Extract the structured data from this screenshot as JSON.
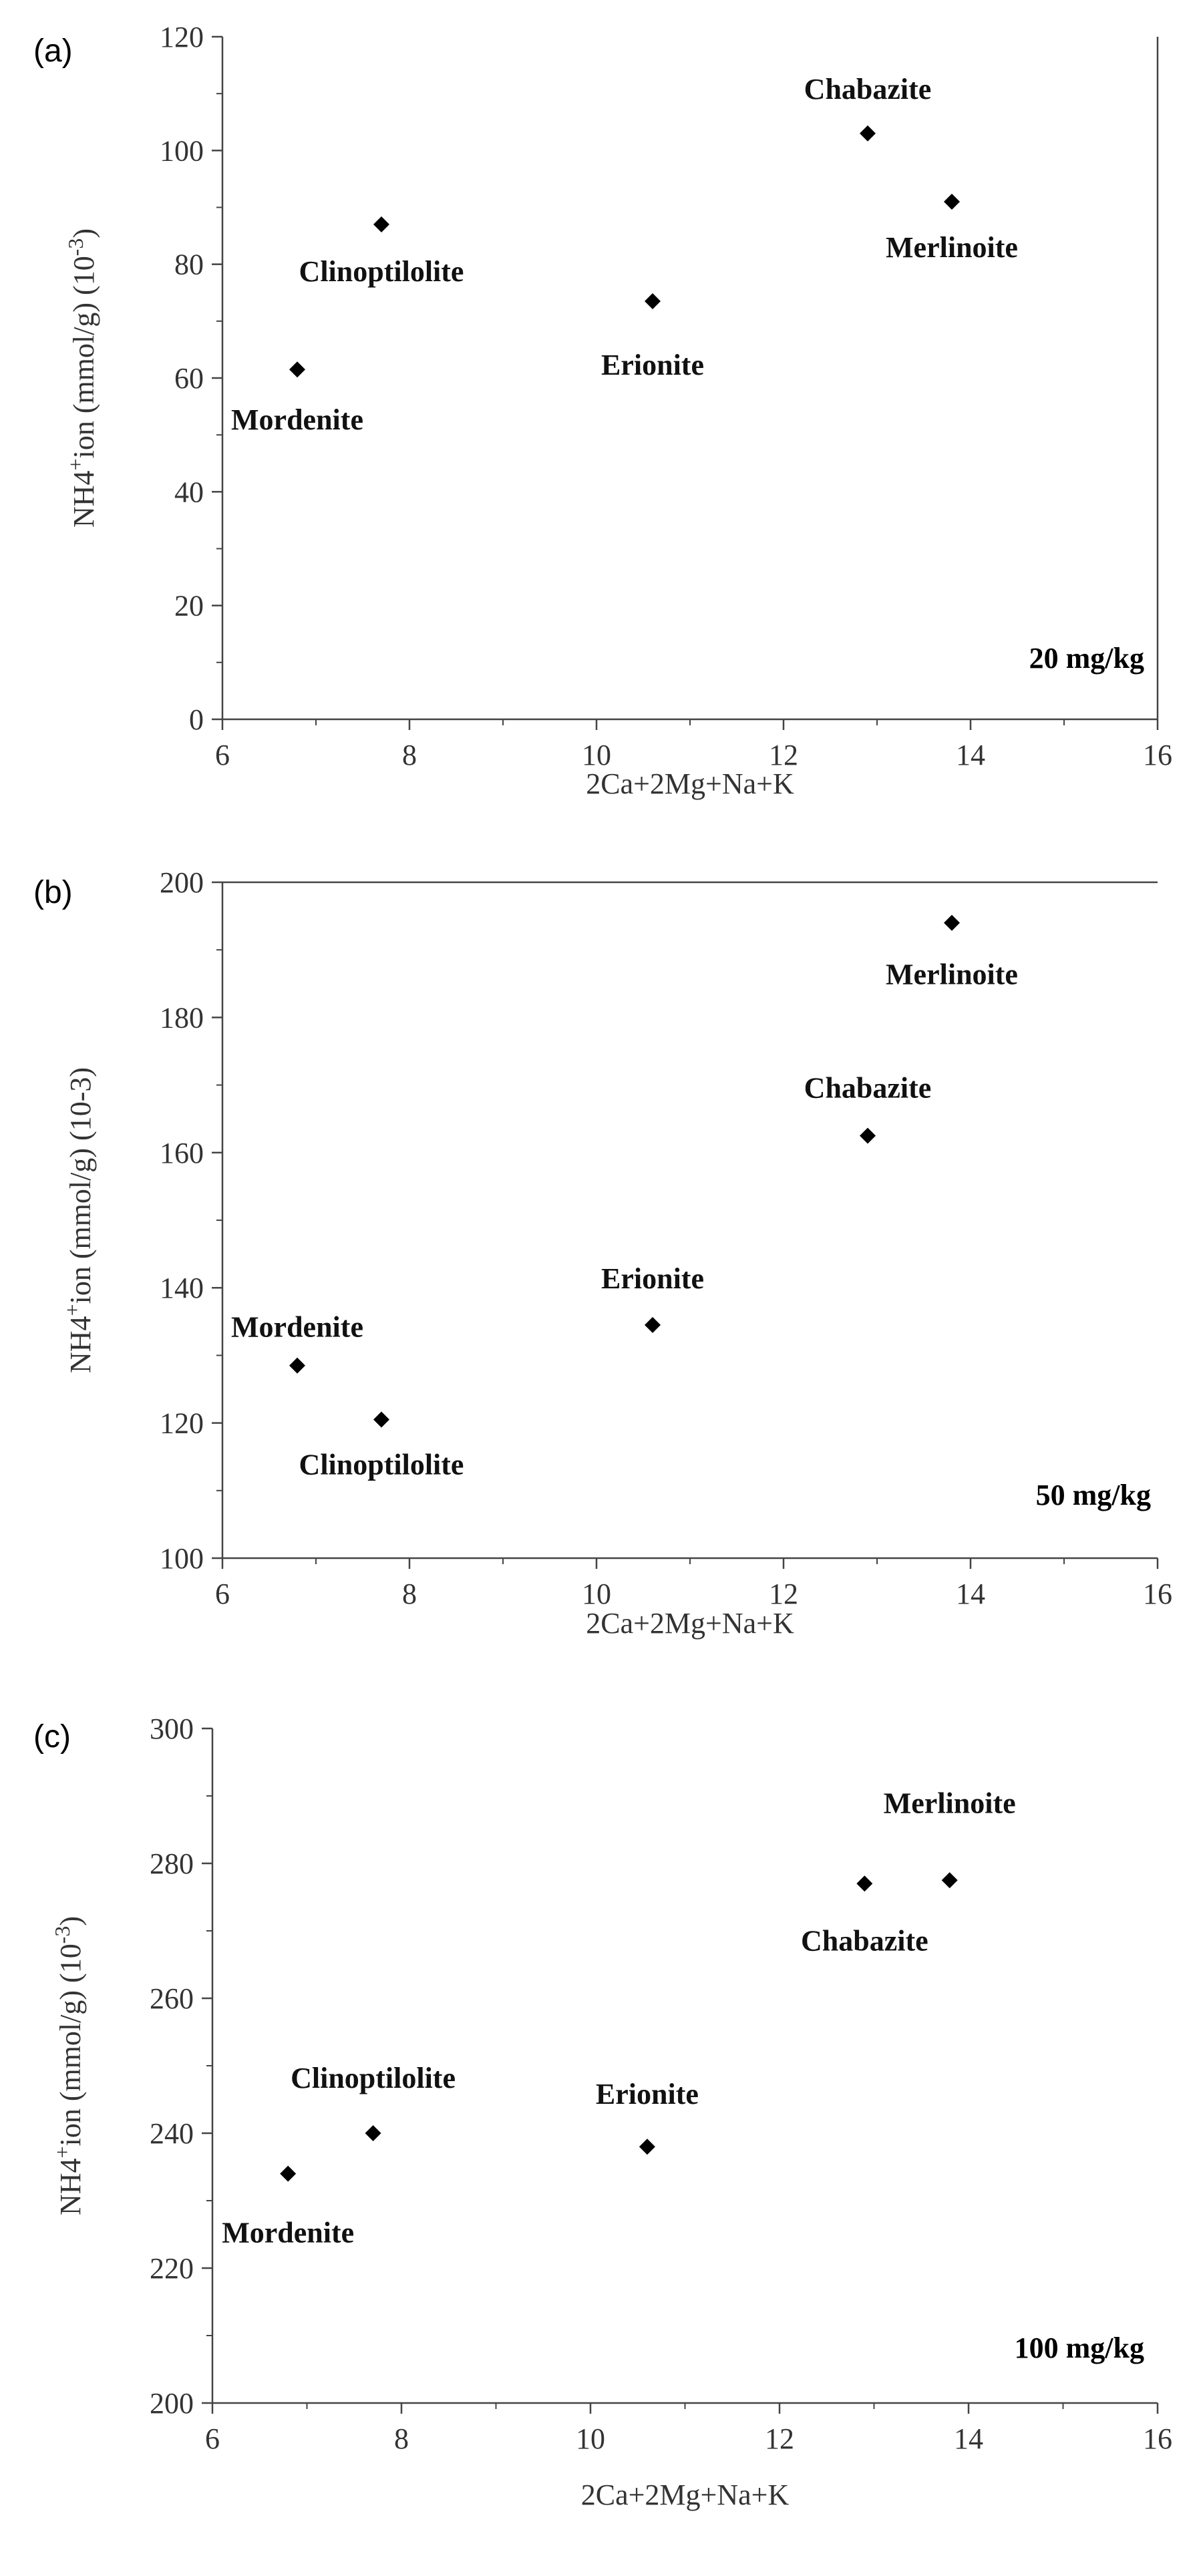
{
  "chart_data": [
    {
      "panel": "(a)",
      "type": "scatter",
      "xlabel": "2Ca+2Mg+Na+K",
      "ylabel": "NH4+ion (mmol/g) (10-3)",
      "ylabel_parts": {
        "base": "NH4",
        "sup_ion": "+",
        "mid": "ion (mmol/g) (10",
        "exp": "-3",
        "end": ")"
      },
      "xlim": [
        6,
        16
      ],
      "ylim": [
        0,
        120
      ],
      "xticks": [
        6,
        8,
        10,
        12,
        14,
        16
      ],
      "yticks": [
        0,
        20,
        40,
        60,
        80,
        100,
        120
      ],
      "xtick_labels": [
        "6",
        "8",
        "10",
        "12",
        "14",
        "16"
      ],
      "ytick_labels": [
        "0",
        "20",
        "40",
        "60",
        "80",
        "100",
        "120"
      ],
      "annotation": "20 mg/kg",
      "points": [
        {
          "label": "Mordenite",
          "x": 6.8,
          "y": 61.5
        },
        {
          "label": "Clinoptilolite",
          "x": 7.7,
          "y": 87
        },
        {
          "label": "Erionite",
          "x": 10.6,
          "y": 73.5
        },
        {
          "label": "Chabazite",
          "x": 12.9,
          "y": 103
        },
        {
          "label": "Merlinoite",
          "x": 13.8,
          "y": 91
        }
      ]
    },
    {
      "panel": "(b)",
      "type": "scatter",
      "xlabel": "2Ca+2Mg+Na+K",
      "ylabel": "NH4+ion (mmol/g) (10-3)",
      "ylabel_parts": {
        "base": "NH4",
        "sup_ion": "+",
        "mid": "ion (mmol/g) (10-3)",
        "exp": "",
        "end": ""
      },
      "xlim": [
        6,
        16
      ],
      "ylim": [
        100,
        200
      ],
      "xticks": [
        6,
        8,
        10,
        12,
        14,
        16
      ],
      "yticks": [
        100,
        120,
        140,
        160,
        180,
        200
      ],
      "xtick_labels": [
        "6",
        "8",
        "10",
        "12",
        "14",
        "16"
      ],
      "ytick_labels": [
        "100",
        "120",
        "140",
        "160",
        "180",
        "200"
      ],
      "annotation": "50 mg/kg",
      "points": [
        {
          "label": "Mordenite",
          "x": 6.8,
          "y": 128.5
        },
        {
          "label": "Clinoptilolite",
          "x": 7.7,
          "y": 120.5
        },
        {
          "label": "Erionite",
          "x": 10.6,
          "y": 134.5
        },
        {
          "label": "Chabazite",
          "x": 12.9,
          "y": 162.5
        },
        {
          "label": "Merlinoite",
          "x": 13.8,
          "y": 194
        }
      ]
    },
    {
      "panel": "(c)",
      "type": "scatter",
      "xlabel": "2Ca+2Mg+Na+K",
      "ylabel": "NH4+ion (mmol/g) (10-3)",
      "ylabel_parts": {
        "base": "NH4",
        "sup_ion": "+",
        "mid": "ion (mmol/g) (10",
        "exp": "-3",
        "end": ")"
      },
      "xlim": [
        6,
        16
      ],
      "ylim": [
        200,
        300
      ],
      "xticks": [
        6,
        8,
        10,
        12,
        14,
        16
      ],
      "yticks": [
        200,
        220,
        240,
        260,
        280,
        300
      ],
      "xtick_labels": [
        "6",
        "8",
        "10",
        "12",
        "14",
        "16"
      ],
      "ytick_labels": [
        "200",
        "220",
        "240",
        "260",
        "280",
        "300"
      ],
      "annotation": "100 mg/kg",
      "points": [
        {
          "label": "Mordenite",
          "x": 6.8,
          "y": 234
        },
        {
          "label": "Clinoptilolite",
          "x": 7.7,
          "y": 240
        },
        {
          "label": "Erionite",
          "x": 10.6,
          "y": 238
        },
        {
          "label": "Chabazite",
          "x": 12.9,
          "y": 277
        },
        {
          "label": "Merlinoite",
          "x": 13.8,
          "y": 277.5
        }
      ]
    }
  ],
  "colors": {
    "marker": "#000000",
    "axis": "#444444",
    "text": "#111111"
  }
}
